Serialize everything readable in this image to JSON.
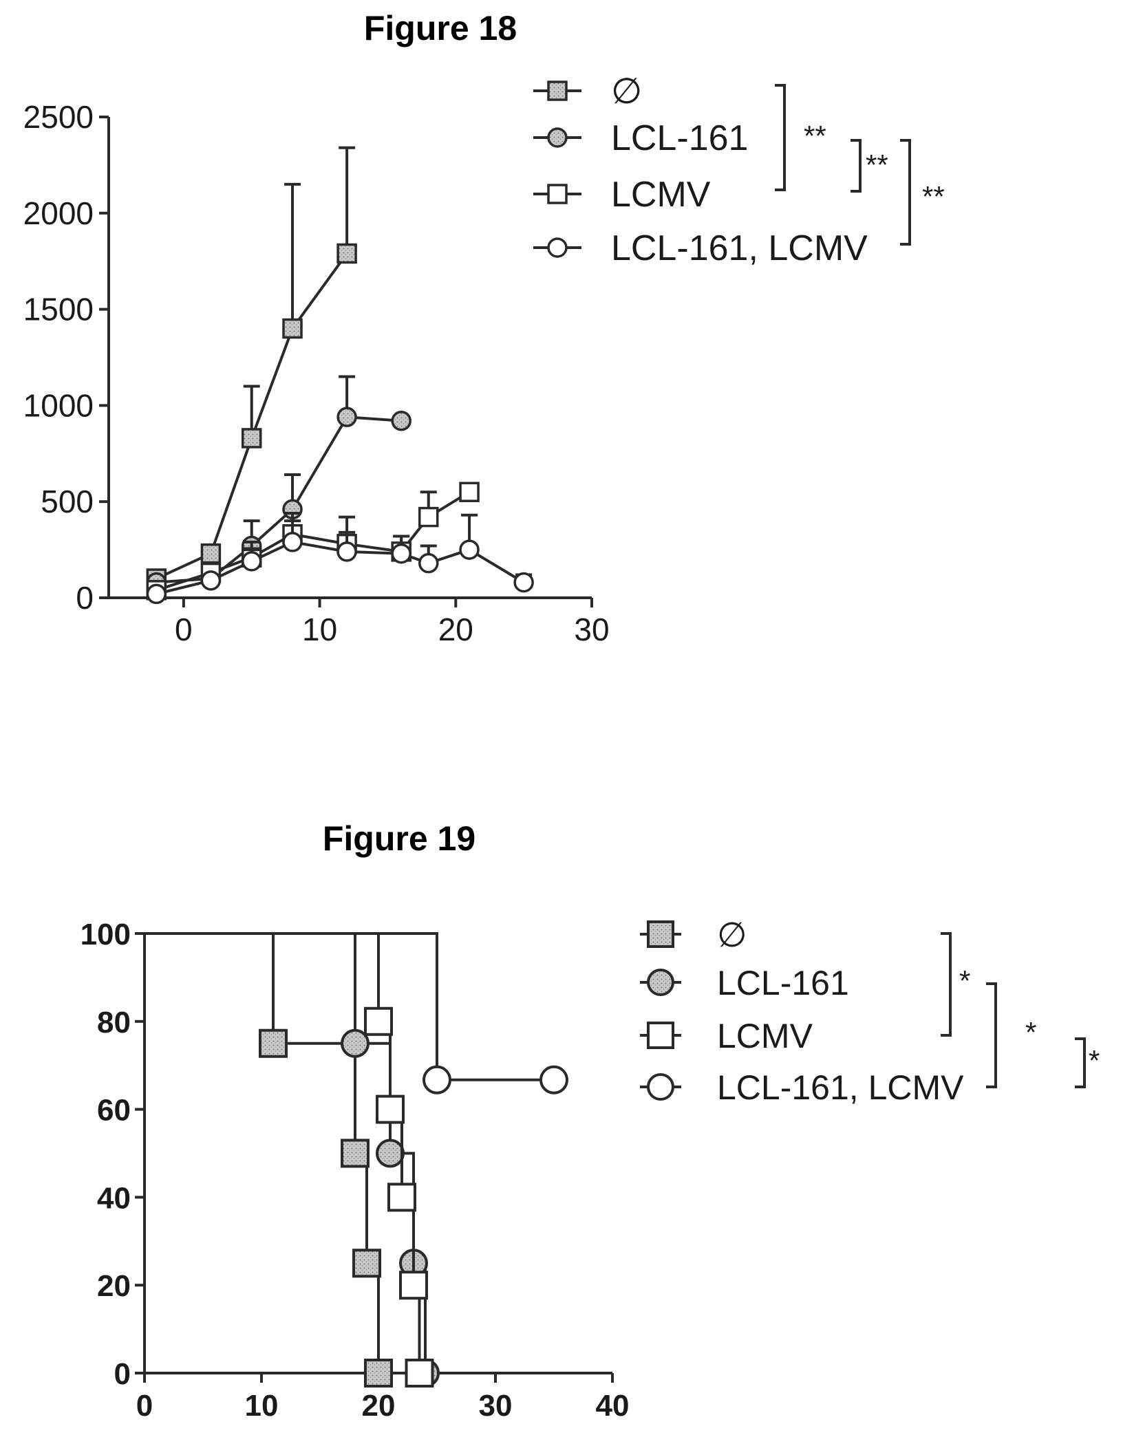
{
  "chart_data": [
    {
      "type": "line",
      "title": "Figure 18",
      "xlabel": "",
      "ylabel": "",
      "xlim": [
        -5,
        30
      ],
      "ylim": [
        0,
        2500
      ],
      "xticks": [
        0,
        10,
        20,
        30
      ],
      "yticks": [
        0,
        500,
        1000,
        1500,
        2000,
        2500
      ],
      "legend_position": "top-right",
      "series": [
        {
          "name": "∅",
          "marker": "square-filled",
          "x": [
            -2,
            2,
            5,
            8,
            12
          ],
          "y": [
            100,
            230,
            830,
            1400,
            1790
          ],
          "err": [
            0,
            0,
            270,
            750,
            550
          ]
        },
        {
          "name": "LCL-161",
          "marker": "circle-filled",
          "x": [
            -2,
            2,
            5,
            8,
            12,
            16
          ],
          "y": [
            80,
            100,
            270,
            460,
            940,
            920
          ],
          "err": [
            0,
            0,
            130,
            180,
            210,
            0
          ]
        },
        {
          "name": "LCMV",
          "marker": "square-open",
          "x": [
            -2,
            2,
            5,
            8,
            12,
            16,
            18,
            21
          ],
          "y": [
            40,
            130,
            210,
            330,
            280,
            240,
            420,
            550
          ],
          "err": [
            0,
            0,
            80,
            110,
            140,
            80,
            130,
            0
          ]
        },
        {
          "name": "LCL-161, LCMV",
          "marker": "circle-open",
          "x": [
            -2,
            2,
            5,
            8,
            12,
            16,
            18,
            21,
            25
          ],
          "y": [
            20,
            90,
            190,
            290,
            240,
            230,
            180,
            250,
            80
          ],
          "err": [
            0,
            0,
            60,
            110,
            100,
            90,
            90,
            180,
            40
          ]
        }
      ],
      "significance": [
        {
          "label": "**"
        },
        {
          "label": "**"
        },
        {
          "label": "**"
        }
      ]
    },
    {
      "type": "line",
      "subtype": "survival",
      "title": "Figure 19",
      "xlabel": "",
      "ylabel": "",
      "xlim": [
        0,
        40
      ],
      "ylim": [
        0,
        100
      ],
      "xticks": [
        0,
        10,
        20,
        30,
        40
      ],
      "yticks": [
        0,
        20,
        40,
        60,
        80,
        100
      ],
      "legend_position": "top-right",
      "series": [
        {
          "name": "∅",
          "marker": "square-filled",
          "steps": [
            [
              0,
              100
            ],
            [
              11,
              75
            ],
            [
              18,
              50
            ],
            [
              19,
              25
            ],
            [
              20,
              0
            ]
          ]
        },
        {
          "name": "LCL-161",
          "marker": "circle-filled",
          "steps": [
            [
              0,
              100
            ],
            [
              18,
              75
            ],
            [
              21,
              50
            ],
            [
              23,
              25
            ],
            [
              24,
              0
            ]
          ]
        },
        {
          "name": "LCMV",
          "marker": "square-open",
          "steps": [
            [
              0,
              100
            ],
            [
              20,
              80
            ],
            [
              21,
              60
            ],
            [
              22,
              40
            ],
            [
              23,
              20
            ],
            [
              23.5,
              0
            ]
          ]
        },
        {
          "name": "LCL-161, LCMV",
          "marker": "circle-open",
          "steps": [
            [
              0,
              100
            ],
            [
              25,
              66.7
            ],
            [
              35,
              66.7
            ]
          ]
        }
      ],
      "significance": [
        {
          "label": "*"
        },
        {
          "label": "*"
        },
        {
          "label": "*"
        }
      ]
    }
  ]
}
